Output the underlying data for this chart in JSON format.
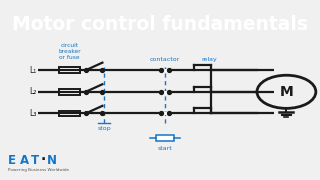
{
  "title": "Motor control fundamentals",
  "title_bg": "#1575c8",
  "title_color": "#ffffff",
  "diagram_bg": "#f0f0f0",
  "line_color": "#1a1a1a",
  "blue_color": "#1575c8",
  "label_circuit": "circuit\nbreaker\nor fuse",
  "label_contactor": "contactor",
  "label_relay": "relay",
  "label_stop": "stop",
  "label_start": "start",
  "label_L1": "L₁",
  "label_L2": "L₂",
  "label_L3": "L₃",
  "label_M": "M",
  "eaton_text": "Powering Business Worldwide",
  "figsize": [
    3.2,
    1.8
  ],
  "dpi": 100
}
